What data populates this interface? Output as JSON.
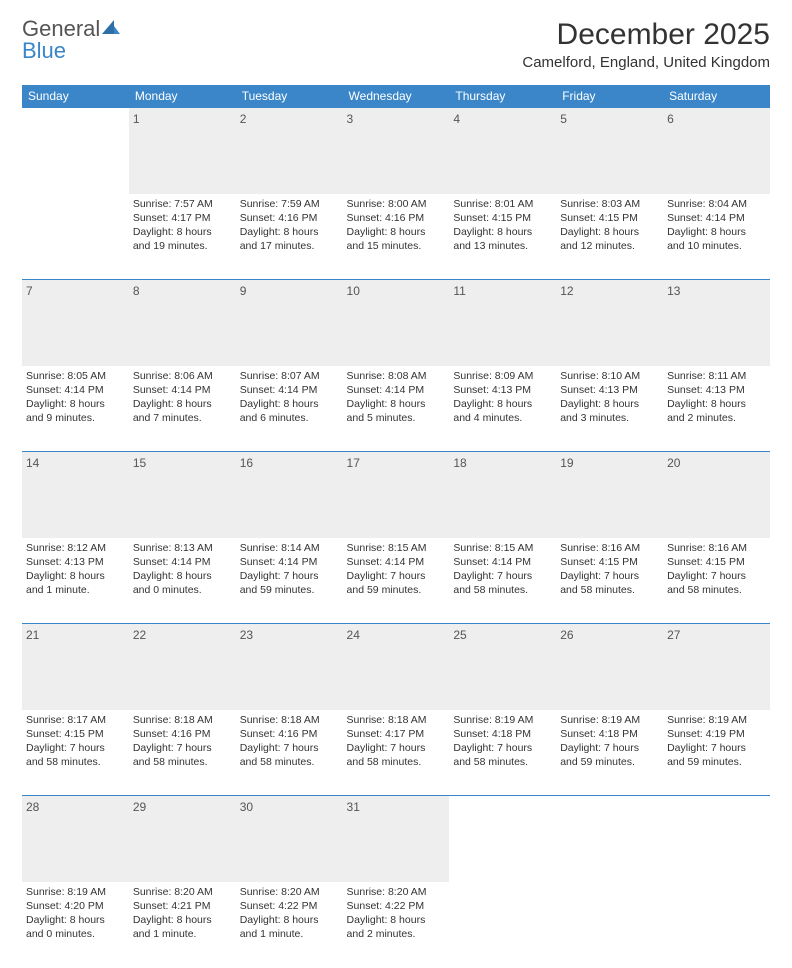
{
  "header": {
    "logo_general": "General",
    "logo_blue": "Blue",
    "month_title": "December 2025",
    "location": "Camelford, England, United Kingdom"
  },
  "colors": {
    "header_bg": "#3a86c8",
    "header_text": "#ffffff",
    "daynum_bg": "#eeeeee",
    "border": "#3a86c8",
    "body_text": "#333333",
    "logo_accent": "#3a86c8",
    "logo_gray": "#555555"
  },
  "calendar": {
    "day_headers": [
      "Sunday",
      "Monday",
      "Tuesday",
      "Wednesday",
      "Thursday",
      "Friday",
      "Saturday"
    ],
    "col_widths_pct": [
      14.28,
      14.28,
      14.28,
      14.28,
      14.28,
      14.28,
      14.28
    ],
    "cell_font_size_pt": 8,
    "header_font_size_pt": 9,
    "weeks": [
      {
        "days": [
          {
            "num": "",
            "lines": []
          },
          {
            "num": "1",
            "lines": [
              "Sunrise: 7:57 AM",
              "Sunset: 4:17 PM",
              "Daylight: 8 hours and 19 minutes."
            ]
          },
          {
            "num": "2",
            "lines": [
              "Sunrise: 7:59 AM",
              "Sunset: 4:16 PM",
              "Daylight: 8 hours and 17 minutes."
            ]
          },
          {
            "num": "3",
            "lines": [
              "Sunrise: 8:00 AM",
              "Sunset: 4:16 PM",
              "Daylight: 8 hours and 15 minutes."
            ]
          },
          {
            "num": "4",
            "lines": [
              "Sunrise: 8:01 AM",
              "Sunset: 4:15 PM",
              "Daylight: 8 hours and 13 minutes."
            ]
          },
          {
            "num": "5",
            "lines": [
              "Sunrise: 8:03 AM",
              "Sunset: 4:15 PM",
              "Daylight: 8 hours and 12 minutes."
            ]
          },
          {
            "num": "6",
            "lines": [
              "Sunrise: 8:04 AM",
              "Sunset: 4:14 PM",
              "Daylight: 8 hours and 10 minutes."
            ]
          }
        ]
      },
      {
        "days": [
          {
            "num": "7",
            "lines": [
              "Sunrise: 8:05 AM",
              "Sunset: 4:14 PM",
              "Daylight: 8 hours and 9 minutes."
            ]
          },
          {
            "num": "8",
            "lines": [
              "Sunrise: 8:06 AM",
              "Sunset: 4:14 PM",
              "Daylight: 8 hours and 7 minutes."
            ]
          },
          {
            "num": "9",
            "lines": [
              "Sunrise: 8:07 AM",
              "Sunset: 4:14 PM",
              "Daylight: 8 hours and 6 minutes."
            ]
          },
          {
            "num": "10",
            "lines": [
              "Sunrise: 8:08 AM",
              "Sunset: 4:14 PM",
              "Daylight: 8 hours and 5 minutes."
            ]
          },
          {
            "num": "11",
            "lines": [
              "Sunrise: 8:09 AM",
              "Sunset: 4:13 PM",
              "Daylight: 8 hours and 4 minutes."
            ]
          },
          {
            "num": "12",
            "lines": [
              "Sunrise: 8:10 AM",
              "Sunset: 4:13 PM",
              "Daylight: 8 hours and 3 minutes."
            ]
          },
          {
            "num": "13",
            "lines": [
              "Sunrise: 8:11 AM",
              "Sunset: 4:13 PM",
              "Daylight: 8 hours and 2 minutes."
            ]
          }
        ]
      },
      {
        "days": [
          {
            "num": "14",
            "lines": [
              "Sunrise: 8:12 AM",
              "Sunset: 4:13 PM",
              "Daylight: 8 hours and 1 minute."
            ]
          },
          {
            "num": "15",
            "lines": [
              "Sunrise: 8:13 AM",
              "Sunset: 4:14 PM",
              "Daylight: 8 hours and 0 minutes."
            ]
          },
          {
            "num": "16",
            "lines": [
              "Sunrise: 8:14 AM",
              "Sunset: 4:14 PM",
              "Daylight: 7 hours and 59 minutes."
            ]
          },
          {
            "num": "17",
            "lines": [
              "Sunrise: 8:15 AM",
              "Sunset: 4:14 PM",
              "Daylight: 7 hours and 59 minutes."
            ]
          },
          {
            "num": "18",
            "lines": [
              "Sunrise: 8:15 AM",
              "Sunset: 4:14 PM",
              "Daylight: 7 hours and 58 minutes."
            ]
          },
          {
            "num": "19",
            "lines": [
              "Sunrise: 8:16 AM",
              "Sunset: 4:15 PM",
              "Daylight: 7 hours and 58 minutes."
            ]
          },
          {
            "num": "20",
            "lines": [
              "Sunrise: 8:16 AM",
              "Sunset: 4:15 PM",
              "Daylight: 7 hours and 58 minutes."
            ]
          }
        ]
      },
      {
        "days": [
          {
            "num": "21",
            "lines": [
              "Sunrise: 8:17 AM",
              "Sunset: 4:15 PM",
              "Daylight: 7 hours and 58 minutes."
            ]
          },
          {
            "num": "22",
            "lines": [
              "Sunrise: 8:18 AM",
              "Sunset: 4:16 PM",
              "Daylight: 7 hours and 58 minutes."
            ]
          },
          {
            "num": "23",
            "lines": [
              "Sunrise: 8:18 AM",
              "Sunset: 4:16 PM",
              "Daylight: 7 hours and 58 minutes."
            ]
          },
          {
            "num": "24",
            "lines": [
              "Sunrise: 8:18 AM",
              "Sunset: 4:17 PM",
              "Daylight: 7 hours and 58 minutes."
            ]
          },
          {
            "num": "25",
            "lines": [
              "Sunrise: 8:19 AM",
              "Sunset: 4:18 PM",
              "Daylight: 7 hours and 58 minutes."
            ]
          },
          {
            "num": "26",
            "lines": [
              "Sunrise: 8:19 AM",
              "Sunset: 4:18 PM",
              "Daylight: 7 hours and 59 minutes."
            ]
          },
          {
            "num": "27",
            "lines": [
              "Sunrise: 8:19 AM",
              "Sunset: 4:19 PM",
              "Daylight: 7 hours and 59 minutes."
            ]
          }
        ]
      },
      {
        "days": [
          {
            "num": "28",
            "lines": [
              "Sunrise: 8:19 AM",
              "Sunset: 4:20 PM",
              "Daylight: 8 hours and 0 minutes."
            ]
          },
          {
            "num": "29",
            "lines": [
              "Sunrise: 8:20 AM",
              "Sunset: 4:21 PM",
              "Daylight: 8 hours and 1 minute."
            ]
          },
          {
            "num": "30",
            "lines": [
              "Sunrise: 8:20 AM",
              "Sunset: 4:22 PM",
              "Daylight: 8 hours and 1 minute."
            ]
          },
          {
            "num": "31",
            "lines": [
              "Sunrise: 8:20 AM",
              "Sunset: 4:22 PM",
              "Daylight: 8 hours and 2 minutes."
            ]
          },
          {
            "num": "",
            "lines": []
          },
          {
            "num": "",
            "lines": []
          },
          {
            "num": "",
            "lines": []
          }
        ]
      }
    ]
  }
}
